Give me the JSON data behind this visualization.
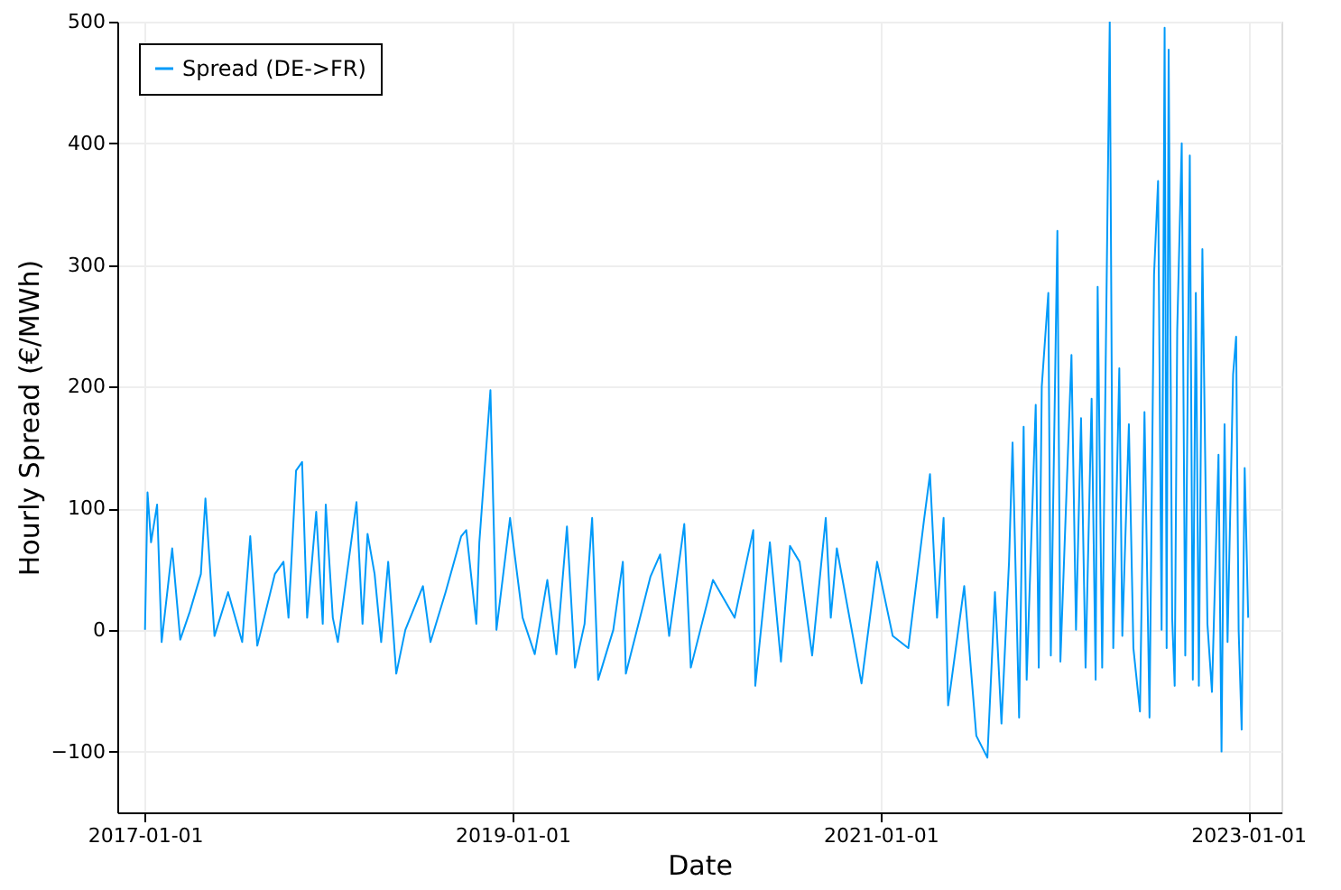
{
  "chart_data": {
    "type": "line",
    "xlabel": "Date",
    "ylabel": "Hourly Spread (€/MWh)",
    "xlim": [
      "2016-11-07",
      "2023-03-08"
    ],
    "ylim": [
      -150,
      500
    ],
    "xticks": [
      "2017-01-01",
      "2019-01-01",
      "2021-01-01",
      "2023-01-01"
    ],
    "yticks": [
      -100,
      0,
      100,
      200,
      300,
      400,
      500
    ],
    "grid": true,
    "legend": "top left",
    "x": [
      "2017-01-01",
      "2017-01-06",
      "2017-01-13",
      "2017-01-25",
      "2017-02-03",
      "2017-02-24",
      "2017-03-12",
      "2017-03-31",
      "2017-04-22",
      "2017-05-01",
      "2017-05-19",
      "2017-06-15",
      "2017-07-13",
      "2017-07-29",
      "2017-08-12",
      "2017-09-16",
      "2017-10-03",
      "2017-10-13",
      "2017-10-28",
      "2017-11-09",
      "2017-11-19",
      "2017-12-07",
      "2017-12-20",
      "2017-12-26",
      "2018-01-09",
      "2018-01-19",
      "2018-02-25",
      "2018-03-09",
      "2018-03-19",
      "2018-04-02",
      "2018-04-15",
      "2018-04-29",
      "2018-05-15",
      "2018-06-02",
      "2018-07-07",
      "2018-07-22",
      "2018-08-21",
      "2018-09-21",
      "2018-10-01",
      "2018-10-21",
      "2018-10-27",
      "2018-11-18",
      "2018-11-23",
      "2018-11-30",
      "2018-12-27",
      "2019-01-21",
      "2019-02-14",
      "2019-03-11",
      "2019-03-29",
      "2019-04-19",
      "2019-05-05",
      "2019-05-24",
      "2019-06-08",
      "2019-06-20",
      "2019-07-20",
      "2019-08-08",
      "2019-08-14",
      "2019-10-02",
      "2019-10-21",
      "2019-11-08",
      "2019-12-08",
      "2019-12-21",
      "2020-02-03",
      "2020-03-17",
      "2020-04-23",
      "2020-04-27",
      "2020-05-26",
      "2020-06-17",
      "2020-07-05",
      "2020-07-24",
      "2020-08-18",
      "2020-09-14",
      "2020-09-24",
      "2020-10-06",
      "2020-11-24",
      "2020-12-25",
      "2021-01-25",
      "2021-02-25",
      "2021-03-28",
      "2021-04-09",
      "2021-04-23",
      "2021-05-06",
      "2021-05-15",
      "2021-06-16",
      "2021-07-10",
      "2021-08-01",
      "2021-08-16",
      "2021-08-29",
      "2021-09-13",
      "2021-09-20",
      "2021-10-03",
      "2021-10-12",
      "2021-10-18",
      "2021-11-05",
      "2021-11-11",
      "2021-11-17",
      "2021-11-30",
      "2021-12-05",
      "2021-12-18",
      "2021-12-24",
      "2022-01-06",
      "2022-01-15",
      "2022-01-24",
      "2022-02-03",
      "2022-02-12",
      "2022-02-24",
      "2022-03-04",
      "2022-03-08",
      "2022-03-17",
      "2022-03-24",
      "2022-04-01",
      "2022-04-08",
      "2022-04-20",
      "2022-04-26",
      "2022-05-09",
      "2022-05-18",
      "2022-05-31",
      "2022-06-09",
      "2022-06-19",
      "2022-06-28",
      "2022-07-06",
      "2022-07-13",
      "2022-07-19",
      "2022-07-23",
      "2022-07-27",
      "2022-08-03",
      "2022-08-08",
      "2022-08-13",
      "2022-08-22",
      "2022-08-29",
      "2022-09-07",
      "2022-09-13",
      "2022-09-19",
      "2022-09-25",
      "2022-10-02",
      "2022-10-12",
      "2022-10-21",
      "2022-11-03",
      "2022-11-09",
      "2022-11-15",
      "2022-11-21",
      "2022-12-02",
      "2022-12-08",
      "2022-12-13",
      "2022-12-19",
      "2022-12-25",
      "2023-01-01"
    ],
    "series": [
      {
        "name": "Spread (DE->FR)",
        "color": "#009af9",
        "values": [
          0,
          113,
          72,
          103,
          -10,
          67,
          -8,
          15,
          46,
          108,
          -5,
          31,
          -10,
          77,
          -13,
          46,
          56,
          10,
          131,
          138,
          10,
          97,
          5,
          103,
          10,
          -10,
          105,
          5,
          79,
          46,
          -10,
          56,
          -36,
          0,
          36,
          -10,
          31,
          77,
          82,
          5,
          72,
          197,
          113,
          0,
          92,
          10,
          -20,
          41,
          -20,
          85,
          -31,
          5,
          92,
          -41,
          0,
          56,
          -36,
          44,
          62,
          -5,
          87,
          -31,
          41,
          10,
          82,
          -46,
          72,
          -26,
          69,
          56,
          -21,
          92,
          10,
          67,
          -44,
          56,
          -5,
          -15,
          90,
          128,
          10,
          92,
          -62,
          36,
          -87,
          -105,
          31,
          -77,
          56,
          154,
          -72,
          167,
          -41,
          185,
          -31,
          200,
          277,
          -21,
          328,
          -26,
          123,
          226,
          0,
          174,
          -31,
          190,
          -41,
          282,
          -31,
          221,
          500,
          -15,
          215,
          -5,
          169,
          -15,
          -67,
          179,
          -72,
          292,
          369,
          0,
          495,
          -15,
          477,
          10,
          -46,
          246,
          400,
          -21,
          390,
          -41,
          277,
          -46,
          313,
          5,
          -51,
          144,
          -100,
          169,
          -10,
          210,
          241,
          0,
          -82,
          133,
          10
        ]
      }
    ]
  }
}
